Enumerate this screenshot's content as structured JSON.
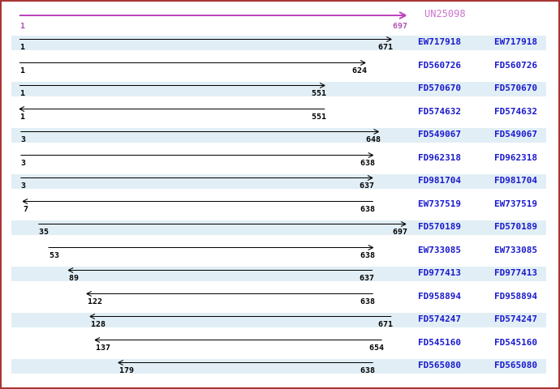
{
  "style": {
    "background": "#ffffff",
    "border_color": "#a93434",
    "row_band_color": "#e1eef5",
    "read_arrow_color": "#000000",
    "read_name_color": "#1a1acd",
    "read_coord_color": "#000000",
    "contig_arrow_color": "#bc44bc",
    "contig_name_color": "#cc77cc",
    "contig_coord_color": "#b356b3"
  },
  "chart_data": {
    "type": "alignment",
    "title": "",
    "x_range": [
      1,
      697
    ],
    "legend": "none",
    "reference": {
      "name": "UN25098",
      "start": 1,
      "end": 697,
      "strand": "forward"
    },
    "reads": [
      {
        "name": "EW717918",
        "start": 1,
        "end": 671,
        "strand": "forward"
      },
      {
        "name": "FD560726",
        "start": 1,
        "end": 624,
        "strand": "forward"
      },
      {
        "name": "FD570670",
        "start": 1,
        "end": 551,
        "strand": "forward"
      },
      {
        "name": "FD574632",
        "start": 1,
        "end": 551,
        "strand": "reverse"
      },
      {
        "name": "FD549067",
        "start": 3,
        "end": 648,
        "strand": "forward"
      },
      {
        "name": "FD962318",
        "start": 3,
        "end": 638,
        "strand": "forward"
      },
      {
        "name": "FD981704",
        "start": 3,
        "end": 637,
        "strand": "forward"
      },
      {
        "name": "EW737519",
        "start": 7,
        "end": 638,
        "strand": "reverse"
      },
      {
        "name": "FD570189",
        "start": 35,
        "end": 697,
        "strand": "forward"
      },
      {
        "name": "EW733085",
        "start": 53,
        "end": 638,
        "strand": "forward"
      },
      {
        "name": "FD977413",
        "start": 89,
        "end": 637,
        "strand": "reverse"
      },
      {
        "name": "FD958894",
        "start": 122,
        "end": 638,
        "strand": "reverse"
      },
      {
        "name": "FD574247",
        "start": 128,
        "end": 671,
        "strand": "reverse"
      },
      {
        "name": "FD545160",
        "start": 137,
        "end": 654,
        "strand": "reverse"
      },
      {
        "name": "FD565080",
        "start": 179,
        "end": 638,
        "strand": "reverse"
      }
    ]
  }
}
